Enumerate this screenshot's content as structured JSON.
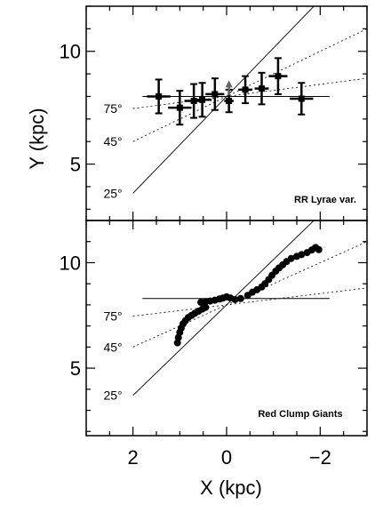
{
  "chart_data": [
    {
      "type": "scatter",
      "title": "RR Lyrae var.",
      "xlabel": "",
      "ylabel": "Y (kpc)",
      "xlim": [
        3,
        -3
      ],
      "ylim": [
        2.5,
        12
      ],
      "yticks": [
        5,
        10
      ],
      "grid": false,
      "series": [
        {
          "name": "",
          "marker": "square",
          "points": [
            {
              "x": 1.45,
              "y": 8.0,
              "xerr": 0.25,
              "yerr": 0.75
            },
            {
              "x": 1.0,
              "y": 7.5,
              "xerr": 0.25,
              "yerr": 0.75
            },
            {
              "x": 0.7,
              "y": 7.8,
              "xerr": 0.2,
              "yerr": 0.75
            },
            {
              "x": 0.52,
              "y": 7.85,
              "xerr": 0.2,
              "yerr": 0.75
            },
            {
              "x": 0.25,
              "y": 8.1,
              "xerr": 0.2,
              "yerr": 0.7
            },
            {
              "x": -0.05,
              "y": 7.8,
              "xerr": 0.1,
              "yerr": 0.5
            },
            {
              "x": -0.4,
              "y": 8.3,
              "xerr": 0.15,
              "yerr": 0.6
            },
            {
              "x": -0.75,
              "y": 8.35,
              "xerr": 0.15,
              "yerr": 0.7
            },
            {
              "x": -1.1,
              "y": 8.9,
              "xerr": 0.2,
              "yerr": 0.8
            },
            {
              "x": -1.6,
              "y": 7.9,
              "xerr": 0.25,
              "yerr": 0.7
            }
          ],
          "arrow": {
            "x": -0.05,
            "from": 8.05,
            "to": 8.6
          }
        }
      ],
      "bar_lines": [
        {
          "angle_label": "25°",
          "tan_angle": 2.1445
        },
        {
          "angle_label": "45°",
          "tan_angle": 1.0
        },
        {
          "angle_label": "75°",
          "tan_angle": 0.268
        }
      ],
      "horizontal_line": 8.0
    },
    {
      "type": "scatter",
      "title": "Red Clump Giants",
      "xlabel": "X (kpc)",
      "ylabel": "",
      "xlim": [
        3,
        -3
      ],
      "ylim": [
        1.8,
        12
      ],
      "xticks": [
        2,
        0,
        -2
      ],
      "yticks": [
        5,
        10
      ],
      "grid": false,
      "series": [
        {
          "name": "",
          "marker": "circle",
          "points": [
            {
              "x": 1.05,
              "y": 6.2
            },
            {
              "x": 1.03,
              "y": 6.45
            },
            {
              "x": 1.0,
              "y": 6.7
            },
            {
              "x": 0.97,
              "y": 6.9
            },
            {
              "x": 0.93,
              "y": 7.1
            },
            {
              "x": 0.88,
              "y": 7.25
            },
            {
              "x": 0.82,
              "y": 7.4
            },
            {
              "x": 0.75,
              "y": 7.5
            },
            {
              "x": 0.68,
              "y": 7.6
            },
            {
              "x": 0.6,
              "y": 7.7
            },
            {
              "x": 0.52,
              "y": 7.8
            },
            {
              "x": 0.45,
              "y": 7.88
            },
            {
              "x": 0.55,
              "y": 8.12
            },
            {
              "x": 0.45,
              "y": 8.15
            },
            {
              "x": 0.35,
              "y": 8.18
            },
            {
              "x": 0.25,
              "y": 8.22
            },
            {
              "x": 0.15,
              "y": 8.28
            },
            {
              "x": 0.08,
              "y": 8.32
            },
            {
              "x": 0.0,
              "y": 8.38
            },
            {
              "x": -0.08,
              "y": 8.33
            },
            {
              "x": -0.18,
              "y": 8.25
            },
            {
              "x": -0.3,
              "y": 8.3
            },
            {
              "x": -0.45,
              "y": 8.45
            },
            {
              "x": -0.55,
              "y": 8.6
            },
            {
              "x": -0.65,
              "y": 8.72
            },
            {
              "x": -0.75,
              "y": 8.85
            },
            {
              "x": -0.82,
              "y": 9.0
            },
            {
              "x": -0.9,
              "y": 9.2
            },
            {
              "x": -0.97,
              "y": 9.4
            },
            {
              "x": -1.05,
              "y": 9.6
            },
            {
              "x": -1.12,
              "y": 9.75
            },
            {
              "x": -1.2,
              "y": 9.9
            },
            {
              "x": -1.28,
              "y": 10.05
            },
            {
              "x": -1.38,
              "y": 10.2
            },
            {
              "x": -1.5,
              "y": 10.3
            },
            {
              "x": -1.6,
              "y": 10.38
            },
            {
              "x": -1.72,
              "y": 10.48
            },
            {
              "x": -1.82,
              "y": 10.6
            },
            {
              "x": -1.9,
              "y": 10.72
            },
            {
              "x": -1.97,
              "y": 10.62
            }
          ]
        }
      ],
      "bar_lines": [
        {
          "angle_label": "25°",
          "tan_angle": 2.1445
        },
        {
          "angle_label": "45°",
          "tan_angle": 1.0
        },
        {
          "angle_label": "75°",
          "tan_angle": 0.268
        }
      ],
      "horizontal_line": 8.3
    }
  ]
}
